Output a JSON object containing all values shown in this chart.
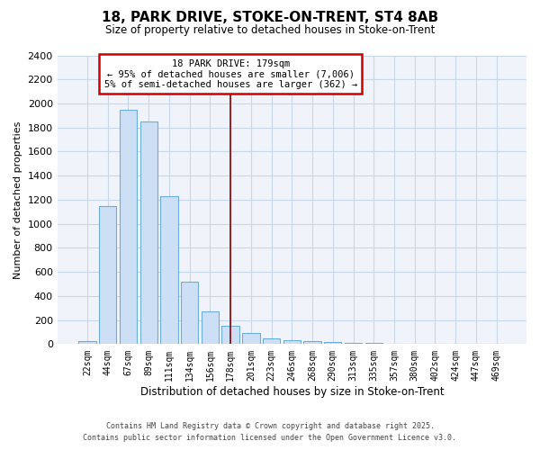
{
  "title_line1": "18, PARK DRIVE, STOKE-ON-TRENT, ST4 8AB",
  "title_line2": "Size of property relative to detached houses in Stoke-on-Trent",
  "xlabel": "Distribution of detached houses by size in Stoke-on-Trent",
  "ylabel": "Number of detached properties",
  "categories": [
    "22sqm",
    "44sqm",
    "67sqm",
    "89sqm",
    "111sqm",
    "134sqm",
    "156sqm",
    "178sqm",
    "201sqm",
    "223sqm",
    "246sqm",
    "268sqm",
    "290sqm",
    "313sqm",
    "335sqm",
    "357sqm",
    "380sqm",
    "402sqm",
    "424sqm",
    "447sqm",
    "469sqm"
  ],
  "values": [
    25,
    1150,
    1950,
    1850,
    1230,
    520,
    270,
    155,
    90,
    50,
    35,
    25,
    15,
    10,
    8,
    5,
    5,
    3,
    3,
    2,
    2
  ],
  "bar_color": "#ccdff5",
  "bar_edge_color": "#6baed6",
  "red_line_x": 7.0,
  "annotation_line1": "18 PARK DRIVE: 179sqm",
  "annotation_line2": "← 95% of detached houses are smaller (7,006)",
  "annotation_line3": "5% of semi-detached houses are larger (362) →",
  "annotation_box_facecolor": "#ffffff",
  "annotation_box_edgecolor": "#cc0000",
  "ylim": [
    0,
    2400
  ],
  "yticks": [
    0,
    200,
    400,
    600,
    800,
    1000,
    1200,
    1400,
    1600,
    1800,
    2000,
    2200,
    2400
  ],
  "fig_background": "#ffffff",
  "plot_background": "#f0f4fa",
  "grid_color": "#c8d8ea",
  "footer_line1": "Contains HM Land Registry data © Crown copyright and database right 2025.",
  "footer_line2": "Contains public sector information licensed under the Open Government Licence v3.0."
}
